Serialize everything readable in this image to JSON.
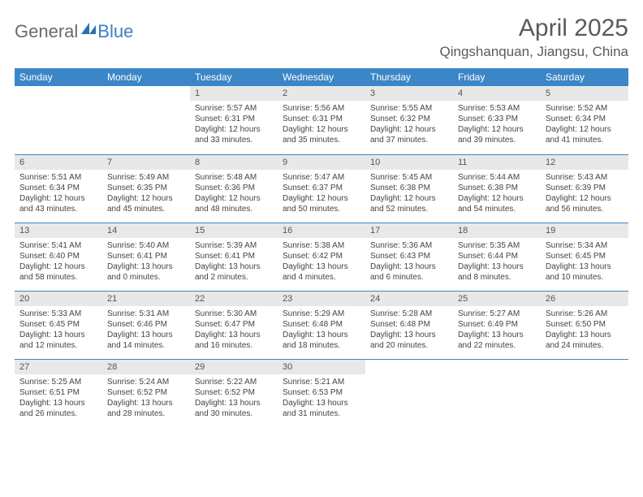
{
  "brand": {
    "general": "General",
    "blue": "Blue",
    "mark_color": "#2f6fb0"
  },
  "title": "April 2025",
  "location": "Qingshanquan, Jiangsu, China",
  "header_bg": "#3b86c7",
  "daynum_bg": "#e8e8e8",
  "days": [
    "Sunday",
    "Monday",
    "Tuesday",
    "Wednesday",
    "Thursday",
    "Friday",
    "Saturday"
  ],
  "weeks": [
    [
      null,
      null,
      {
        "n": "1",
        "sr": "5:57 AM",
        "ss": "6:31 PM",
        "dl": "12 hours and 33 minutes."
      },
      {
        "n": "2",
        "sr": "5:56 AM",
        "ss": "6:31 PM",
        "dl": "12 hours and 35 minutes."
      },
      {
        "n": "3",
        "sr": "5:55 AM",
        "ss": "6:32 PM",
        "dl": "12 hours and 37 minutes."
      },
      {
        "n": "4",
        "sr": "5:53 AM",
        "ss": "6:33 PM",
        "dl": "12 hours and 39 minutes."
      },
      {
        "n": "5",
        "sr": "5:52 AM",
        "ss": "6:34 PM",
        "dl": "12 hours and 41 minutes."
      }
    ],
    [
      {
        "n": "6",
        "sr": "5:51 AM",
        "ss": "6:34 PM",
        "dl": "12 hours and 43 minutes."
      },
      {
        "n": "7",
        "sr": "5:49 AM",
        "ss": "6:35 PM",
        "dl": "12 hours and 45 minutes."
      },
      {
        "n": "8",
        "sr": "5:48 AM",
        "ss": "6:36 PM",
        "dl": "12 hours and 48 minutes."
      },
      {
        "n": "9",
        "sr": "5:47 AM",
        "ss": "6:37 PM",
        "dl": "12 hours and 50 minutes."
      },
      {
        "n": "10",
        "sr": "5:45 AM",
        "ss": "6:38 PM",
        "dl": "12 hours and 52 minutes."
      },
      {
        "n": "11",
        "sr": "5:44 AM",
        "ss": "6:38 PM",
        "dl": "12 hours and 54 minutes."
      },
      {
        "n": "12",
        "sr": "5:43 AM",
        "ss": "6:39 PM",
        "dl": "12 hours and 56 minutes."
      }
    ],
    [
      {
        "n": "13",
        "sr": "5:41 AM",
        "ss": "6:40 PM",
        "dl": "12 hours and 58 minutes."
      },
      {
        "n": "14",
        "sr": "5:40 AM",
        "ss": "6:41 PM",
        "dl": "13 hours and 0 minutes."
      },
      {
        "n": "15",
        "sr": "5:39 AM",
        "ss": "6:41 PM",
        "dl": "13 hours and 2 minutes."
      },
      {
        "n": "16",
        "sr": "5:38 AM",
        "ss": "6:42 PM",
        "dl": "13 hours and 4 minutes."
      },
      {
        "n": "17",
        "sr": "5:36 AM",
        "ss": "6:43 PM",
        "dl": "13 hours and 6 minutes."
      },
      {
        "n": "18",
        "sr": "5:35 AM",
        "ss": "6:44 PM",
        "dl": "13 hours and 8 minutes."
      },
      {
        "n": "19",
        "sr": "5:34 AM",
        "ss": "6:45 PM",
        "dl": "13 hours and 10 minutes."
      }
    ],
    [
      {
        "n": "20",
        "sr": "5:33 AM",
        "ss": "6:45 PM",
        "dl": "13 hours and 12 minutes."
      },
      {
        "n": "21",
        "sr": "5:31 AM",
        "ss": "6:46 PM",
        "dl": "13 hours and 14 minutes."
      },
      {
        "n": "22",
        "sr": "5:30 AM",
        "ss": "6:47 PM",
        "dl": "13 hours and 16 minutes."
      },
      {
        "n": "23",
        "sr": "5:29 AM",
        "ss": "6:48 PM",
        "dl": "13 hours and 18 minutes."
      },
      {
        "n": "24",
        "sr": "5:28 AM",
        "ss": "6:48 PM",
        "dl": "13 hours and 20 minutes."
      },
      {
        "n": "25",
        "sr": "5:27 AM",
        "ss": "6:49 PM",
        "dl": "13 hours and 22 minutes."
      },
      {
        "n": "26",
        "sr": "5:26 AM",
        "ss": "6:50 PM",
        "dl": "13 hours and 24 minutes."
      }
    ],
    [
      {
        "n": "27",
        "sr": "5:25 AM",
        "ss": "6:51 PM",
        "dl": "13 hours and 26 minutes."
      },
      {
        "n": "28",
        "sr": "5:24 AM",
        "ss": "6:52 PM",
        "dl": "13 hours and 28 minutes."
      },
      {
        "n": "29",
        "sr": "5:22 AM",
        "ss": "6:52 PM",
        "dl": "13 hours and 30 minutes."
      },
      {
        "n": "30",
        "sr": "5:21 AM",
        "ss": "6:53 PM",
        "dl": "13 hours and 31 minutes."
      },
      null,
      null,
      null
    ]
  ],
  "labels": {
    "sunrise": "Sunrise:",
    "sunset": "Sunset:",
    "daylight": "Daylight:"
  }
}
